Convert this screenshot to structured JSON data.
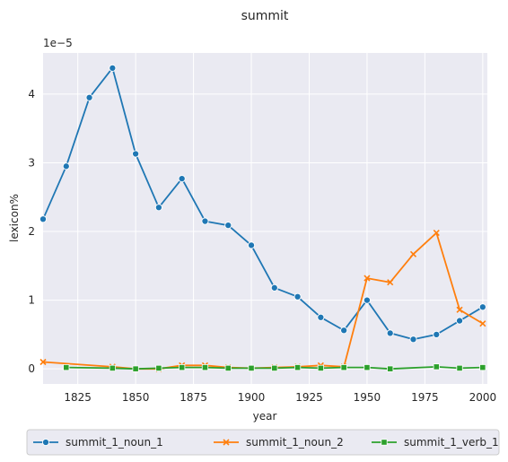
{
  "chart_data": {
    "type": "line",
    "title": "summit",
    "xlabel": "year",
    "ylabel": "lexicon%",
    "y_offset_label": "1e−5",
    "xlim": [
      1810,
      2002
    ],
    "ylim": [
      -0.22,
      4.6
    ],
    "x_ticks": [
      1825,
      1850,
      1875,
      1900,
      1925,
      1950,
      1975,
      2000
    ],
    "y_ticks": [
      0,
      1,
      2,
      3,
      4
    ],
    "grid": true,
    "legend_position": "bottom-center",
    "series": [
      {
        "name": "summit_1_noun_1",
        "color": "#1f77b4",
        "marker": "circle",
        "x": [
          1810,
          1820,
          1830,
          1840,
          1850,
          1860,
          1870,
          1880,
          1890,
          1900,
          1910,
          1920,
          1930,
          1940,
          1950,
          1960,
          1970,
          1980,
          1990,
          2000
        ],
        "y": [
          2.18,
          2.95,
          3.95,
          4.38,
          3.13,
          2.35,
          2.77,
          2.15,
          2.09,
          1.8,
          1.18,
          1.05,
          0.75,
          0.56,
          1.0,
          0.52,
          0.43,
          0.5,
          0.7,
          0.9
        ]
      },
      {
        "name": "summit_1_noun_2",
        "color": "#ff7f0e",
        "marker": "x",
        "x": [
          1810,
          1840,
          1850,
          1860,
          1870,
          1880,
          1890,
          1900,
          1910,
          1920,
          1930,
          1940,
          1950,
          1960,
          1970,
          1980,
          1990,
          2000
        ],
        "y": [
          0.1,
          0.03,
          0.0,
          0.0,
          0.05,
          0.05,
          0.02,
          0.01,
          0.02,
          0.03,
          0.05,
          0.03,
          1.32,
          1.26,
          1.67,
          1.98,
          0.86,
          0.66
        ]
      },
      {
        "name": "summit_1_verb_1",
        "color": "#2ca02c",
        "marker": "square",
        "x": [
          1820,
          1840,
          1850,
          1860,
          1870,
          1880,
          1890,
          1900,
          1910,
          1920,
          1930,
          1940,
          1950,
          1960,
          1980,
          1990,
          2000
        ],
        "y": [
          0.02,
          0.01,
          0.0,
          0.01,
          0.02,
          0.02,
          0.01,
          0.01,
          0.01,
          0.02,
          0.01,
          0.02,
          0.02,
          0.0,
          0.03,
          0.01,
          0.02
        ]
      }
    ]
  }
}
